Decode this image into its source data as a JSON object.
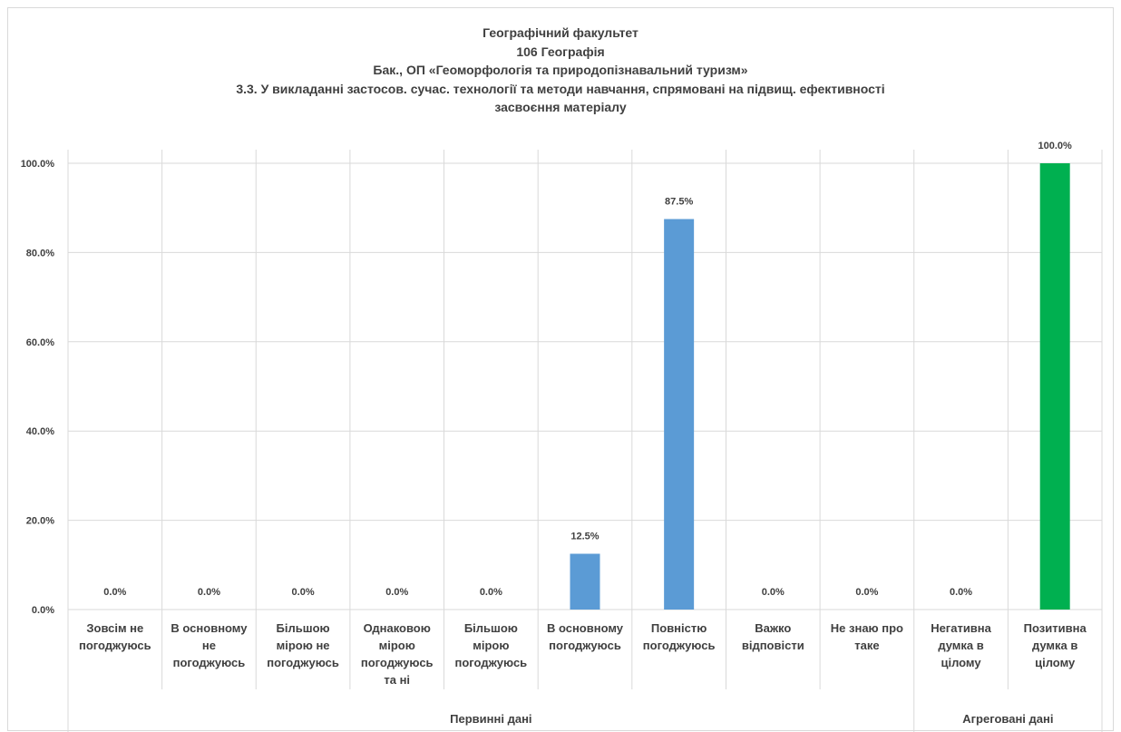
{
  "chart_data": {
    "type": "bar",
    "title_lines": [
      "Географічний факультет",
      "106 Географія",
      "Бак., ОП «Геоморфологія та природопізнавальний туризм»",
      "3.3. У викладанні застосов. сучас. технології та методи навчання, спрямовані на підвищ. ефективності",
      "засвоєння матеріалу"
    ],
    "categories": [
      [
        "Зовсім не",
        "погоджуюсь"
      ],
      [
        "В основному",
        "не",
        "погоджуюсь"
      ],
      [
        "Більшою",
        "мірою не",
        "погоджуюсь"
      ],
      [
        "Однаковою",
        "мірою",
        "погоджуюсь",
        "та ні"
      ],
      [
        "Більшою",
        "мірою",
        "погоджуюсь"
      ],
      [
        "В основному",
        "погоджуюсь"
      ],
      [
        "Повністю",
        "погоджуюсь"
      ],
      [
        "Важко",
        "відповісти"
      ],
      [
        "Не знаю про",
        "таке"
      ],
      [
        "Негативна",
        "думка в",
        "цілому"
      ],
      [
        "Позитивна",
        "думка в",
        "цілому"
      ]
    ],
    "values": [
      0.0,
      0.0,
      0.0,
      0.0,
      0.0,
      12.5,
      87.5,
      0.0,
      0.0,
      0.0,
      100.0
    ],
    "data_labels": [
      "0.0%",
      "0.0%",
      "0.0%",
      "0.0%",
      "0.0%",
      "12.5%",
      "87.5%",
      "0.0%",
      "0.0%",
      "0.0%",
      "100.0%"
    ],
    "groups": [
      {
        "label": "Первинні дані",
        "start": 0,
        "end": 8
      },
      {
        "label": "Агреговані дані",
        "start": 9,
        "end": 10
      }
    ],
    "ylim": [
      0,
      100
    ],
    "yticks": [
      "0.0%",
      "20.0%",
      "40.0%",
      "60.0%",
      "80.0%",
      "100.0%"
    ],
    "ytick_values": [
      0,
      20,
      40,
      60,
      80,
      100
    ],
    "grid": true,
    "colors": {
      "primary": "#5b9bd5",
      "aggregated": "#00b050",
      "grid": "#d9d9d9",
      "text": "#404040"
    }
  }
}
